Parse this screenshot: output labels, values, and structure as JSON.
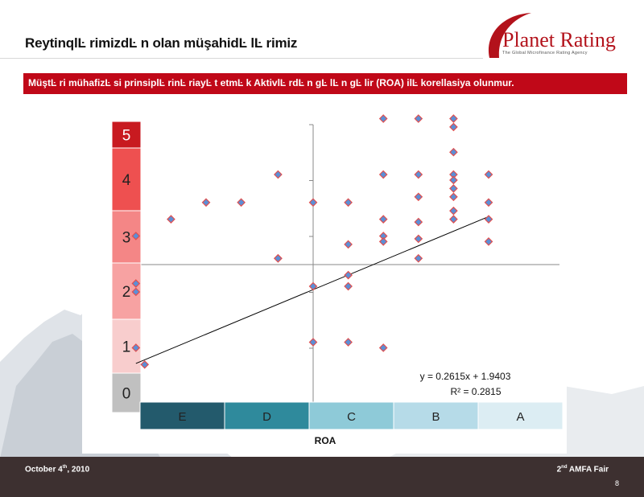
{
  "slide": {
    "title": "ReytinqlĿ rimizdĿ n olan müşahidĿ lĿ rimiz",
    "banner": "MüştĿ ri mühafizĿ si prinsiplĿ rinĿ  riayĿ t etmĿ k AktivlĿ rdĿ n gĿ lĿ n gĿ lir (ROA) ilĿ  korellasiya olunmur.",
    "logo_main": "Planet Rating",
    "logo_sub": "The Global Microfinance Rating Agency",
    "footer_date_pre": "October 4",
    "footer_date_sup": "th",
    "footer_date_post": ", 2010",
    "footer_event_pre": "2",
    "footer_event_sup": "nd",
    "footer_event_post": " AMFA Fair",
    "page_number": "8"
  },
  "colors": {
    "brand": "#c00818",
    "footer": "#3d3030",
    "marker_fill": "#5b8fd6",
    "marker_edge": "#e05050"
  },
  "chart_data": {
    "type": "scatter",
    "xlabel": "ROA",
    "ylabel": "",
    "ylim": [
      0,
      5
    ],
    "grid": false,
    "rating_bands": [
      {
        "label": "0",
        "color": "#c0c0c0"
      },
      {
        "label": "1",
        "color": "#f8cdcd"
      },
      {
        "label": "2",
        "color": "#f7a2a2"
      },
      {
        "label": "3",
        "color": "#f48686"
      },
      {
        "label": "4",
        "color": "#ee5050"
      },
      {
        "label": "5",
        "color": "#c81a20"
      }
    ],
    "roa_classes": [
      {
        "label": "E",
        "color": "#235a6c"
      },
      {
        "label": "D",
        "color": "#2f8a9c"
      },
      {
        "label": "C",
        "color": "#8ecad8"
      },
      {
        "label": "B",
        "color": "#b6dbe8"
      },
      {
        "label": "A",
        "color": "#dcedf3"
      }
    ],
    "points": [
      {
        "x": -5.05,
        "y": 1.9
      },
      {
        "x": -5.05,
        "y": 0.9
      },
      {
        "x": -5.05,
        "y": 2.9
      },
      {
        "x": -5.05,
        "y": 2.05
      },
      {
        "x": -4.8,
        "y": 0.6
      },
      {
        "x": -4.05,
        "y": 3.2
      },
      {
        "x": -3.05,
        "y": 3.5
      },
      {
        "x": -2.05,
        "y": 3.5
      },
      {
        "x": -1.0,
        "y": 2.5
      },
      {
        "x": -1.0,
        "y": 2.5
      },
      {
        "x": -1.0,
        "y": 4.0
      },
      {
        "x": 0.0,
        "y": 3.5
      },
      {
        "x": 0.0,
        "y": 2.0
      },
      {
        "x": 0.0,
        "y": 1.0
      },
      {
        "x": 1.0,
        "y": 3.5
      },
      {
        "x": 1.0,
        "y": 2.75
      },
      {
        "x": 1.0,
        "y": 2.2
      },
      {
        "x": 1.0,
        "y": 2.0
      },
      {
        "x": 1.0,
        "y": 1.0
      },
      {
        "x": 2.0,
        "y": 5.0
      },
      {
        "x": 2.0,
        "y": 4.0
      },
      {
        "x": 2.0,
        "y": 3.2
      },
      {
        "x": 2.0,
        "y": 2.9
      },
      {
        "x": 2.0,
        "y": 2.8
      },
      {
        "x": 2.0,
        "y": 0.9
      },
      {
        "x": 3.0,
        "y": 5.0
      },
      {
        "x": 3.0,
        "y": 4.0
      },
      {
        "x": 3.0,
        "y": 3.6
      },
      {
        "x": 3.0,
        "y": 3.15
      },
      {
        "x": 3.0,
        "y": 2.85
      },
      {
        "x": 3.0,
        "y": 2.5
      },
      {
        "x": 4.0,
        "y": 5.0
      },
      {
        "x": 4.0,
        "y": 4.85
      },
      {
        "x": 4.0,
        "y": 4.4
      },
      {
        "x": 4.0,
        "y": 4.0
      },
      {
        "x": 4.0,
        "y": 3.9
      },
      {
        "x": 4.0,
        "y": 3.75
      },
      {
        "x": 4.0,
        "y": 3.6
      },
      {
        "x": 4.0,
        "y": 3.35
      },
      {
        "x": 4.0,
        "y": 3.2
      },
      {
        "x": 5.0,
        "y": 4.0
      },
      {
        "x": 5.0,
        "y": 3.5
      },
      {
        "x": 5.0,
        "y": 3.2
      },
      {
        "x": 5.0,
        "y": 2.8
      }
    ],
    "trendline": {
      "slope": 0.2615,
      "intercept": 1.9403,
      "x_start": -5.05,
      "x_end": 5.0
    },
    "equation_label": "y = 0.2615x + 1.9403",
    "r2_label": "R² = 0.2815"
  }
}
